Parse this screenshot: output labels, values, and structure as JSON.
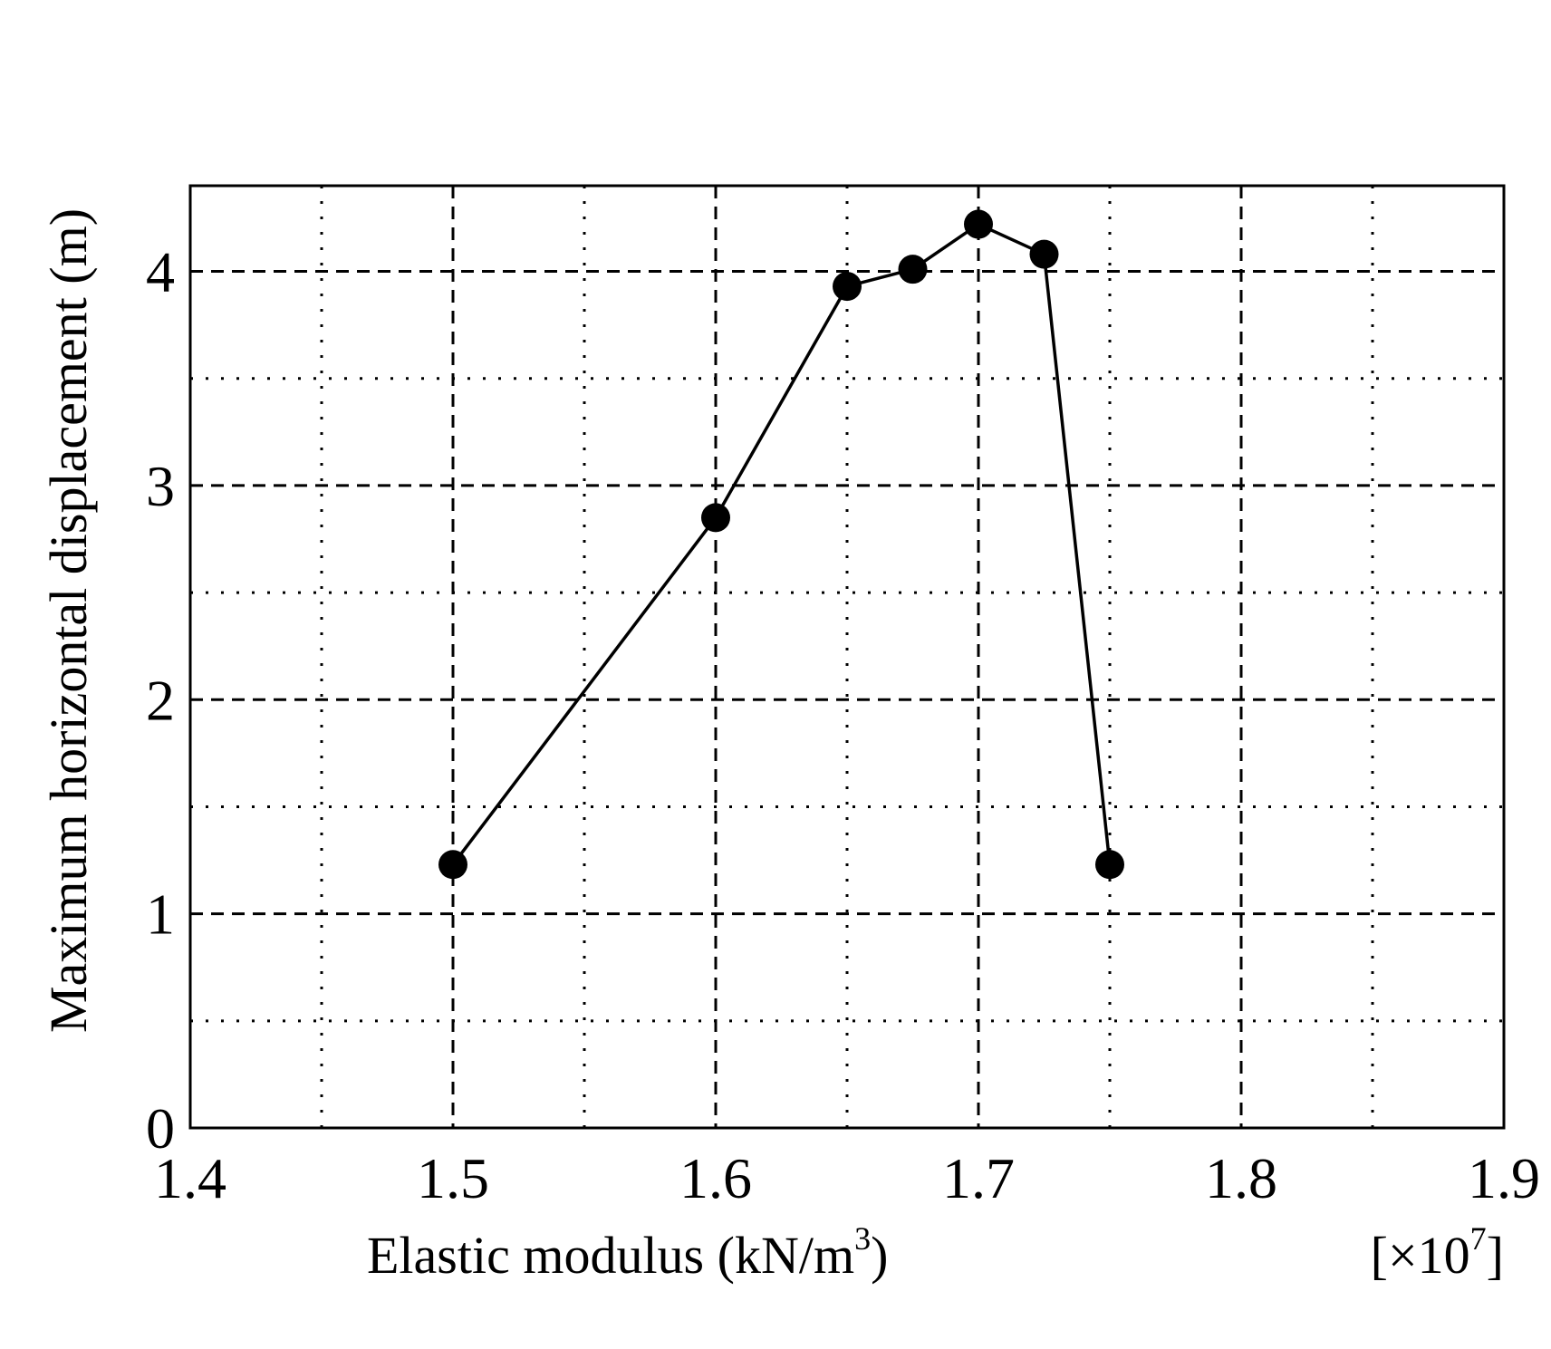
{
  "chart_data": {
    "type": "line",
    "title": "",
    "xlabel": "Elastic modulus (kN/m",
    "xlabel_superscript": "3",
    "xlabel_suffix": ")",
    "x_multiplier_prefix": "[×10",
    "x_multiplier_exponent": "7",
    "x_multiplier_suffix": "]",
    "ylabel": "Maximum horizontal displacement (m)",
    "xlim": [
      1.4,
      1.9
    ],
    "ylim": [
      0,
      4.4
    ],
    "x_ticks": [
      1.4,
      1.5,
      1.6,
      1.7,
      1.8,
      1.9
    ],
    "x_tick_labels": [
      "1.4",
      "1.5",
      "1.6",
      "1.7",
      "1.8",
      "1.9"
    ],
    "y_ticks": [
      0,
      1,
      2,
      3,
      4
    ],
    "y_tick_labels": [
      "0",
      "1",
      "2",
      "3",
      "4"
    ],
    "x_minor_grid": [
      1.45,
      1.55,
      1.65,
      1.75,
      1.85
    ],
    "y_minor_grid": [
      0.5,
      1.5,
      2.5,
      3.5
    ],
    "grid": true,
    "marker": "filled-circle",
    "line_color": "#000000",
    "series": [
      {
        "x": [
          1.5,
          1.6,
          1.65,
          1.675,
          1.7,
          1.725,
          1.75
        ],
        "values": [
          1.23,
          2.85,
          3.93,
          4.01,
          4.22,
          4.08,
          1.23
        ]
      }
    ]
  }
}
